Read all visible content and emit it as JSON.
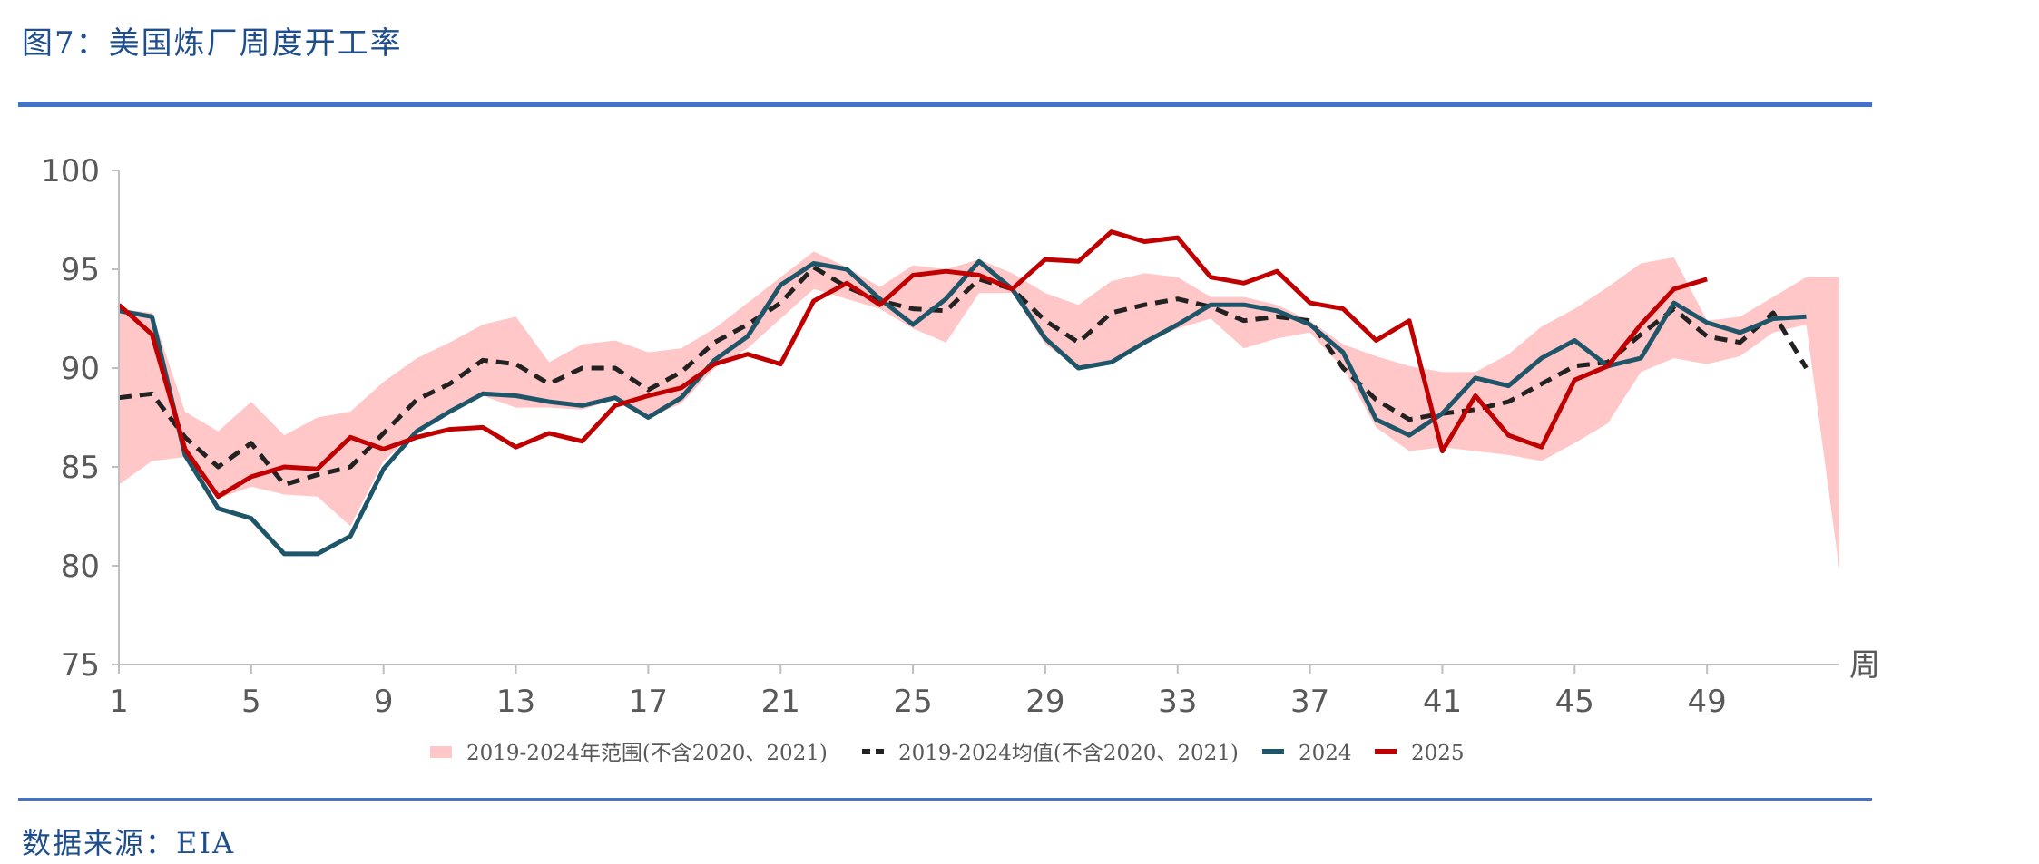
{
  "header": {
    "title": "图7：美国炼厂周度开工率"
  },
  "footer": {
    "source": "数据来源：EIA"
  },
  "colors": {
    "range": "#ffc7c7",
    "avg": "#222222",
    "y2024": "#1f5568",
    "y2025": "#c00000",
    "accent_rule": "#4472c4",
    "title_text": "#1f4e8c"
  },
  "chart_data": {
    "type": "line",
    "title": "",
    "xlabel": "周",
    "ylabel": "",
    "xlim": [
      1,
      53
    ],
    "ylim": [
      75,
      100
    ],
    "xticks": [
      1,
      5,
      9,
      13,
      17,
      21,
      25,
      29,
      33,
      37,
      41,
      45,
      49
    ],
    "yticks": [
      75,
      80,
      85,
      90,
      95,
      100
    ],
    "grid": false,
    "legend_position": "bottom",
    "range_band": {
      "name": "2019-2024年范围(不含2020、2021)",
      "color": "#ffc7c7",
      "x": [
        1,
        2,
        3,
        4,
        5,
        6,
        7,
        8,
        9,
        10,
        11,
        12,
        13,
        14,
        15,
        16,
        17,
        18,
        19,
        20,
        21,
        22,
        23,
        24,
        25,
        26,
        27,
        28,
        29,
        30,
        31,
        32,
        33,
        34,
        35,
        36,
        37,
        38,
        39,
        40,
        41,
        42,
        43,
        44,
        45,
        46,
        47,
        48,
        49,
        50,
        51,
        52,
        53
      ],
      "low": [
        84.1,
        85.3,
        85.5,
        83.4,
        84.0,
        83.6,
        83.5,
        82.0,
        85.3,
        86.8,
        87.8,
        88.6,
        88.0,
        88.0,
        87.9,
        88.4,
        87.5,
        88.2,
        90.0,
        91.0,
        92.5,
        94.0,
        93.5,
        93.0,
        92.0,
        91.3,
        93.8,
        93.8,
        91.2,
        90.0,
        90.4,
        91.3,
        92.0,
        92.5,
        91.0,
        91.5,
        91.8,
        90.0,
        87.0,
        85.8,
        86.0,
        85.8,
        85.6,
        85.3,
        86.2,
        87.2,
        89.8,
        90.5,
        90.2,
        90.6,
        91.8,
        92.2,
        79.8
      ],
      "high": [
        93.0,
        92.8,
        87.8,
        86.8,
        88.3,
        86.6,
        87.5,
        87.8,
        89.3,
        90.5,
        91.3,
        92.2,
        92.6,
        90.3,
        91.2,
        91.4,
        90.8,
        91.0,
        92.0,
        93.3,
        94.6,
        95.9,
        95.1,
        94.1,
        95.2,
        95.0,
        95.5,
        94.8,
        93.8,
        93.2,
        94.4,
        94.8,
        94.6,
        93.6,
        93.6,
        93.2,
        92.4,
        91.2,
        90.6,
        90.1,
        89.8,
        89.8,
        90.7,
        92.1,
        93.0,
        94.1,
        95.3,
        95.6,
        92.4,
        92.6,
        93.6,
        94.6,
        94.6
      ]
    },
    "series": [
      {
        "name": "2019-2024均值(不含2020、2021)",
        "color": "#222222",
        "dash": "14,9",
        "x": [
          1,
          2,
          3,
          4,
          5,
          6,
          7,
          8,
          9,
          10,
          11,
          12,
          13,
          14,
          15,
          16,
          17,
          18,
          19,
          20,
          21,
          22,
          23,
          24,
          25,
          26,
          27,
          28,
          29,
          30,
          31,
          32,
          33,
          34,
          35,
          36,
          37,
          38,
          39,
          40,
          41,
          42,
          43,
          44,
          45,
          46,
          47,
          48,
          49,
          50,
          51,
          52
        ],
        "values": [
          88.5,
          88.7,
          86.5,
          85.0,
          86.2,
          84.1,
          84.6,
          85.0,
          86.7,
          88.4,
          89.2,
          90.4,
          90.2,
          89.2,
          90.0,
          90.0,
          88.9,
          89.8,
          91.3,
          92.2,
          93.3,
          95.1,
          94.1,
          93.4,
          93.0,
          92.9,
          94.5,
          94.0,
          92.4,
          91.3,
          92.8,
          93.2,
          93.5,
          93.1,
          92.4,
          92.6,
          92.4,
          90.0,
          88.4,
          87.4,
          87.7,
          87.9,
          88.3,
          89.2,
          90.1,
          90.3,
          91.7,
          93.0,
          91.6,
          91.3,
          92.8,
          90.0
        ]
      },
      {
        "name": "2024",
        "color": "#1f5568",
        "dash": "",
        "x": [
          1,
          2,
          3,
          4,
          5,
          6,
          7,
          8,
          9,
          10,
          11,
          12,
          13,
          14,
          15,
          16,
          17,
          18,
          19,
          20,
          21,
          22,
          23,
          24,
          25,
          26,
          27,
          28,
          29,
          30,
          31,
          32,
          33,
          34,
          35,
          36,
          37,
          38,
          39,
          40,
          41,
          42,
          43,
          44,
          45,
          46,
          47,
          48,
          49,
          50,
          51,
          52
        ],
        "values": [
          92.9,
          92.6,
          85.6,
          82.9,
          82.4,
          80.6,
          80.6,
          81.5,
          84.9,
          86.8,
          87.8,
          88.7,
          88.6,
          88.3,
          88.1,
          88.5,
          87.5,
          88.5,
          90.4,
          91.6,
          94.2,
          95.3,
          95.0,
          93.5,
          92.2,
          93.5,
          95.4,
          94.0,
          91.5,
          90.0,
          90.3,
          91.3,
          92.2,
          93.2,
          93.2,
          92.9,
          92.2,
          90.8,
          87.4,
          86.6,
          87.7,
          89.5,
          89.1,
          90.5,
          91.4,
          90.1,
          90.5,
          93.3,
          92.3,
          91.8,
          92.5,
          92.6
        ]
      },
      {
        "name": "2025",
        "color": "#c00000",
        "dash": "",
        "x": [
          1,
          2,
          3,
          4,
          5,
          6,
          7,
          8,
          9,
          10,
          11,
          12,
          13,
          14,
          15,
          16,
          17,
          18,
          19,
          20,
          21,
          22,
          23,
          24,
          25,
          26,
          27,
          28,
          29,
          30,
          31,
          32,
          33,
          34,
          35,
          36,
          37,
          38,
          39,
          40,
          41,
          42,
          43,
          44,
          45,
          46,
          47,
          48,
          49
        ],
        "values": [
          93.2,
          91.7,
          85.9,
          83.5,
          84.5,
          85.0,
          84.9,
          86.5,
          85.9,
          86.5,
          86.9,
          87.0,
          86.0,
          86.7,
          86.3,
          88.1,
          88.6,
          89.0,
          90.2,
          90.7,
          90.2,
          93.4,
          94.3,
          93.2,
          94.7,
          94.9,
          94.7,
          94.0,
          95.5,
          95.4,
          96.9,
          96.4,
          96.6,
          94.6,
          94.3,
          94.9,
          93.3,
          93.0,
          91.4,
          92.4,
          85.8,
          88.6,
          86.6,
          86.0,
          89.4,
          90.1,
          92.2,
          94.0,
          94.5
        ]
      }
    ]
  }
}
